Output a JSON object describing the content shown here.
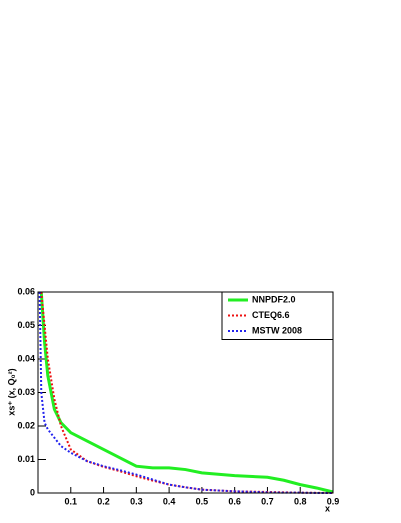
{
  "chart_data": {
    "type": "line",
    "x_label": "x",
    "y_label": "xs⁺ (x, Q₀²)",
    "x": [
      0.005,
      0.01,
      0.02,
      0.03,
      0.05,
      0.07,
      0.1,
      0.15,
      0.2,
      0.25,
      0.3,
      0.35,
      0.4,
      0.45,
      0.5,
      0.6,
      0.7,
      0.75,
      0.8,
      0.85,
      0.9
    ],
    "series": [
      {
        "name": "NNPDF2.0",
        "color": "#22ee22",
        "style": "solid",
        "values": [
          null,
          0.06,
          0.045,
          0.035,
          0.025,
          0.021,
          0.018,
          0.0155,
          0.013,
          0.0105,
          0.008,
          0.0075,
          0.0075,
          0.007,
          0.006,
          0.0052,
          0.0047,
          0.0038,
          0.0025,
          0.0015,
          0.0003
        ]
      },
      {
        "name": "CTEQ6.6",
        "color": "#ee1111",
        "style": "dotted",
        "values": [
          null,
          0.06,
          0.05,
          0.04,
          0.028,
          0.02,
          0.013,
          0.0095,
          0.0078,
          0.0065,
          0.005,
          0.0037,
          0.0025,
          0.0017,
          0.001,
          0.0005,
          0.0003,
          0.0002,
          0.0001,
          5e-05,
          0
        ]
      },
      {
        "name": "MSTW 2008",
        "color": "#2222ee",
        "style": "dotted",
        "values": [
          0.06,
          0.03,
          0.021,
          0.019,
          0.0165,
          0.014,
          0.012,
          0.0095,
          0.008,
          0.0068,
          0.0055,
          0.004,
          0.0025,
          0.0017,
          0.001,
          0.0005,
          0.0002,
          0.0001,
          0.0001,
          0,
          0
        ]
      }
    ],
    "xlim": [
      0,
      0.9
    ],
    "xticks": [
      0.1,
      0.2,
      0.3,
      0.4,
      0.5,
      0.6,
      0.7,
      0.8,
      0.9
    ],
    "ylim": [
      0,
      0.06
    ],
    "yticks": [
      0,
      0.01,
      0.02,
      0.03,
      0.04,
      0.05,
      0.06
    ],
    "legend": "top right"
  }
}
